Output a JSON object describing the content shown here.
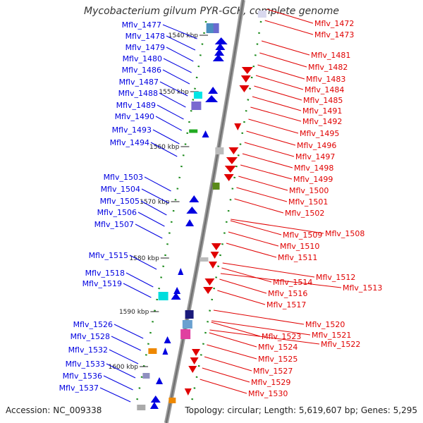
{
  "title": "Mycobacterium gilvum PYR-GCK, complete genome",
  "footer": {
    "accession": "Accession: NC_009338",
    "summary": "Topology: circular; Length: 5,619,607 bp; Genes: 5,295"
  },
  "colors": {
    "forward": "#0000e0",
    "reverse": "#e00000",
    "backbone": "#888888"
  },
  "scale_ticks": [
    "1540 kbp",
    "1550 kbp",
    "1560 kbp",
    "1570 kbp",
    "1580 kbp",
    "1590 kbp",
    "1600 kbp"
  ],
  "left_labels": [
    "Mflv_1477",
    "Mflv_1478",
    "Mflv_1479",
    "Mflv_1480",
    "Mflv_1486",
    "Mflv_1487",
    "Mflv_1488",
    "Mflv_1489",
    "Mflv_1490",
    "Mflv_1493",
    "Mflv_1494",
    "Mflv_1503",
    "Mflv_1504",
    "Mflv_1505",
    "Mflv_1506",
    "Mflv_1507",
    "Mflv_1515",
    "Mflv_1518",
    "Mflv_1519",
    "Mflv_1526",
    "Mflv_1528",
    "Mflv_1532",
    "Mflv_1533",
    "Mflv_1536",
    "Mflv_1537"
  ],
  "right_labels": [
    "Mflv_1472",
    "Mflv_1473",
    "Mflv_1481",
    "Mflv_1482",
    "Mflv_1483",
    "Mflv_1484",
    "Mflv_1485",
    "Mflv_1491",
    "Mflv_1492",
    "Mflv_1495",
    "Mflv_1496",
    "Mflv_1497",
    "Mflv_1498",
    "Mflv_1499",
    "Mflv_1500",
    "Mflv_1501",
    "Mflv_1502",
    "Mflv_1509",
    "Mflv_1508",
    "Mflv_1510",
    "Mflv_1511",
    "Mflv_1512",
    "Mflv_1513",
    "Mflv_1514",
    "Mflv_1516",
    "Mflv_1517",
    "Mflv_1520",
    "Mflv_1521",
    "Mflv_1522",
    "Mflv_1523",
    "Mflv_1524",
    "Mflv_1525",
    "Mflv_1527",
    "Mflv_1529",
    "Mflv_1530"
  ]
}
